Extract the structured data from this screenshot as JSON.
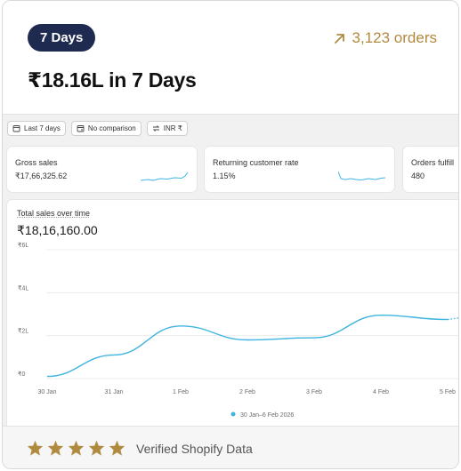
{
  "header": {
    "period_badge": "7 Days",
    "orders_text": "3,123 orders",
    "headline": "₹18.16L in 7 Days"
  },
  "filters": [
    {
      "label": "Last 7 days",
      "icon": "calendar-icon"
    },
    {
      "label": "No comparison",
      "icon": "compare-calendar-icon"
    },
    {
      "label": "INR ₹",
      "icon": "currency-exchange-icon"
    }
  ],
  "metrics": [
    {
      "label": "Gross sales",
      "value": "₹17,66,325.62"
    },
    {
      "label": "Returning customer rate",
      "value": "1.15%"
    },
    {
      "label": "Orders fulfill",
      "value": "480"
    }
  ],
  "chart": {
    "title": "Total sales over time",
    "total": "₹18,16,160.00"
  },
  "chart_data": {
    "type": "line",
    "title": "Total sales over time",
    "x": [
      "30 Jan",
      "31 Jan",
      "1 Feb",
      "2 Feb",
      "3 Feb",
      "4 Feb",
      "5 Feb"
    ],
    "series": [
      {
        "name": "30 Jan–6 Feb 2026",
        "values": [
          0.1,
          1.1,
          2.45,
          1.8,
          1.9,
          2.95,
          2.75
        ]
      }
    ],
    "y_ticks": [
      "₹0",
      "₹2L",
      "₹4L",
      "₹6L"
    ],
    "ylim": [
      0,
      6
    ],
    "grid": true,
    "legend": "bottom-center",
    "color": "#3fb4e0"
  },
  "footer": {
    "rating": 5,
    "verified_text": "Verified Shopify Data"
  },
  "colors": {
    "badge_bg": "#1e2a4f",
    "accent_gold": "#b08a3e",
    "line": "#3fb4e0"
  }
}
